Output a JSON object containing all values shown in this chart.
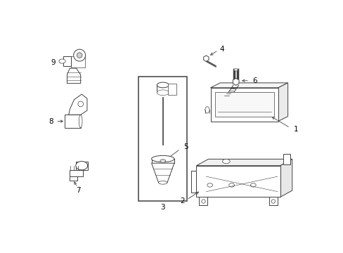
{
  "background_color": "#ffffff",
  "line_color": "#404040",
  "label_color": "#000000",
  "figsize": [
    4.89,
    3.6
  ],
  "dpi": 100,
  "label_fontsize": 7.5,
  "lw": 0.7
}
